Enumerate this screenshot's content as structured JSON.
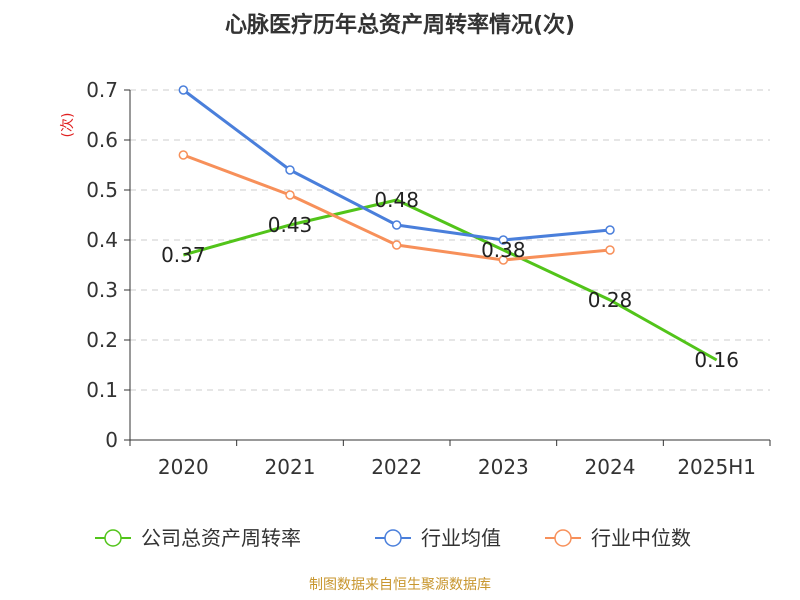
{
  "chart_data": {
    "type": "line",
    "title": "心脉医疗历年总资产周转率情况(次)",
    "ylabel": "(次)",
    "xlabel": "",
    "categories": [
      "2020",
      "2021",
      "2022",
      "2023",
      "2024",
      "2025H1"
    ],
    "ylim": [
      0,
      0.7
    ],
    "yticks": [
      "0",
      "0.1",
      "0.2",
      "0.3",
      "0.4",
      "0.5",
      "0.6",
      "0.7"
    ],
    "grid": true,
    "legend_position": "bottom",
    "series": [
      {
        "name": "公司总资产周转率",
        "color": "#52c41a",
        "values": [
          0.37,
          0.43,
          0.48,
          0.38,
          0.28,
          0.16
        ],
        "labels": [
          "0.37",
          "0.43",
          "0.48",
          "0.38",
          "0.28",
          "0.16"
        ],
        "show_markers": false
      },
      {
        "name": "行业均值",
        "color": "#4a7fdb",
        "values": [
          0.7,
          0.54,
          0.43,
          0.4,
          0.42,
          null
        ],
        "show_markers": true
      },
      {
        "name": "行业中位数",
        "color": "#f7905a",
        "values": [
          0.57,
          0.49,
          0.39,
          0.36,
          0.38,
          null
        ],
        "show_markers": true
      }
    ],
    "source": "制图数据来自恒生聚源数据库"
  }
}
